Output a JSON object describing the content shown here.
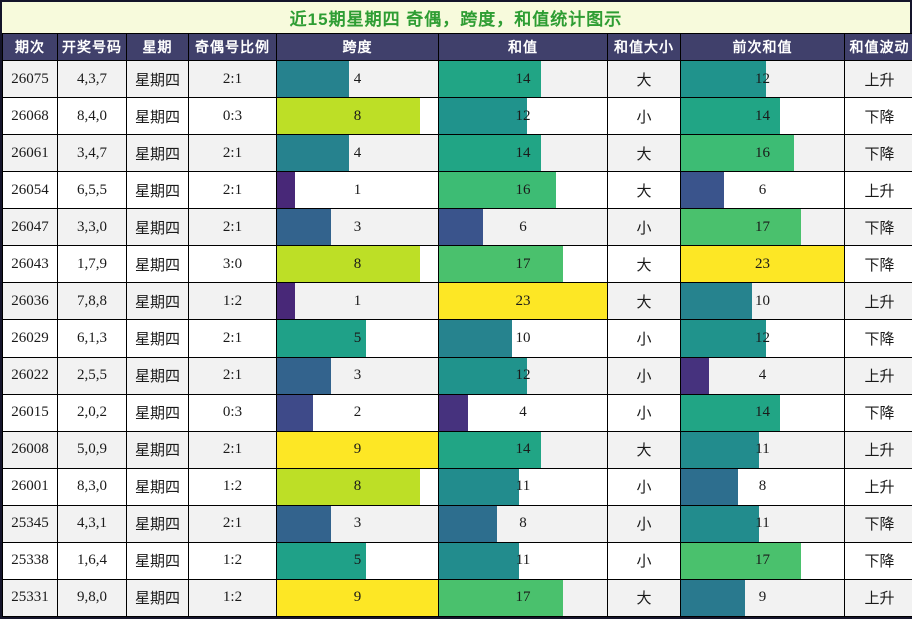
{
  "title": "近15期星期四 奇偶，跨度，和值统计图示",
  "colors": {
    "title_bg": "#f7fadc",
    "title_text": "#2e9d33",
    "header_bg": "#40406b",
    "header_text": "#ffffff",
    "row_odd_bg": "#f2f2f2",
    "row_even_bg": "#ffffff",
    "grid_border": "#000000",
    "bar_label_text": "#1a1a1a",
    "span_bar": {
      "1": "#482878",
      "2": "#3e4a89",
      "3": "#33638d",
      "4": "#26828e",
      "5": "#1fa188",
      "8": "#bddf26",
      "9": "#fde725"
    },
    "sum_bar": {
      "4": "#46327e",
      "6": "#3a548c",
      "8": "#2d6e8e",
      "9": "#29798e",
      "10": "#26838e",
      "11": "#228c8d",
      "12": "#20938c",
      "14": "#21a585",
      "16": "#3dbc74",
      "17": "#4ac16d",
      "23": "#fde725"
    }
  },
  "table": {
    "columns": [
      "期次",
      "开奖号码",
      "星期",
      "奇偶号比例",
      "跨度",
      "和值",
      "和值大小",
      "前次和值",
      "和值波动"
    ],
    "scales": {
      "span_max": 9,
      "sum_max": 23
    },
    "rows": [
      {
        "period": "26075",
        "numbers": "4,3,7",
        "weekday": "星期四",
        "odd_even_ratio": "2:1",
        "span": 4,
        "sum": 14,
        "sum_size": "大",
        "prev_sum": 12,
        "trend": "上升"
      },
      {
        "period": "26068",
        "numbers": "8,4,0",
        "weekday": "星期四",
        "odd_even_ratio": "0:3",
        "span": 8,
        "sum": 12,
        "sum_size": "小",
        "prev_sum": 14,
        "trend": "下降"
      },
      {
        "period": "26061",
        "numbers": "3,4,7",
        "weekday": "星期四",
        "odd_even_ratio": "2:1",
        "span": 4,
        "sum": 14,
        "sum_size": "大",
        "prev_sum": 16,
        "trend": "下降"
      },
      {
        "period": "26054",
        "numbers": "6,5,5",
        "weekday": "星期四",
        "odd_even_ratio": "2:1",
        "span": 1,
        "sum": 16,
        "sum_size": "大",
        "prev_sum": 6,
        "trend": "上升"
      },
      {
        "period": "26047",
        "numbers": "3,3,0",
        "weekday": "星期四",
        "odd_even_ratio": "2:1",
        "span": 3,
        "sum": 6,
        "sum_size": "小",
        "prev_sum": 17,
        "trend": "下降"
      },
      {
        "period": "26043",
        "numbers": "1,7,9",
        "weekday": "星期四",
        "odd_even_ratio": "3:0",
        "span": 8,
        "sum": 17,
        "sum_size": "大",
        "prev_sum": 23,
        "trend": "下降"
      },
      {
        "period": "26036",
        "numbers": "7,8,8",
        "weekday": "星期四",
        "odd_even_ratio": "1:2",
        "span": 1,
        "sum": 23,
        "sum_size": "大",
        "prev_sum": 10,
        "trend": "上升"
      },
      {
        "period": "26029",
        "numbers": "6,1,3",
        "weekday": "星期四",
        "odd_even_ratio": "2:1",
        "span": 5,
        "sum": 10,
        "sum_size": "小",
        "prev_sum": 12,
        "trend": "下降"
      },
      {
        "period": "26022",
        "numbers": "2,5,5",
        "weekday": "星期四",
        "odd_even_ratio": "2:1",
        "span": 3,
        "sum": 12,
        "sum_size": "小",
        "prev_sum": 4,
        "trend": "上升"
      },
      {
        "period": "26015",
        "numbers": "2,0,2",
        "weekday": "星期四",
        "odd_even_ratio": "0:3",
        "span": 2,
        "sum": 4,
        "sum_size": "小",
        "prev_sum": 14,
        "trend": "下降"
      },
      {
        "period": "26008",
        "numbers": "5,0,9",
        "weekday": "星期四",
        "odd_even_ratio": "2:1",
        "span": 9,
        "sum": 14,
        "sum_size": "大",
        "prev_sum": 11,
        "trend": "上升"
      },
      {
        "period": "26001",
        "numbers": "8,3,0",
        "weekday": "星期四",
        "odd_even_ratio": "1:2",
        "span": 8,
        "sum": 11,
        "sum_size": "小",
        "prev_sum": 8,
        "trend": "上升"
      },
      {
        "period": "25345",
        "numbers": "4,3,1",
        "weekday": "星期四",
        "odd_even_ratio": "2:1",
        "span": 3,
        "sum": 8,
        "sum_size": "小",
        "prev_sum": 11,
        "trend": "下降"
      },
      {
        "period": "25338",
        "numbers": "1,6,4",
        "weekday": "星期四",
        "odd_even_ratio": "1:2",
        "span": 5,
        "sum": 11,
        "sum_size": "小",
        "prev_sum": 17,
        "trend": "下降"
      },
      {
        "period": "25331",
        "numbers": "9,8,0",
        "weekday": "星期四",
        "odd_even_ratio": "1:2",
        "span": 9,
        "sum": 17,
        "sum_size": "大",
        "prev_sum": 9,
        "trend": "上升"
      }
    ]
  },
  "chart_data": {
    "type": "table",
    "title": "近15期星期四 奇偶，跨度，和值统计图示",
    "columns": [
      "期次",
      "开奖号码",
      "星期",
      "奇偶号比例",
      "跨度",
      "和值",
      "和值大小",
      "前次和值",
      "和值波动"
    ],
    "categories": [
      "26075",
      "26068",
      "26061",
      "26054",
      "26047",
      "26043",
      "26036",
      "26029",
      "26022",
      "26015",
      "26008",
      "26001",
      "25345",
      "25338",
      "25331"
    ],
    "series": [
      {
        "name": "跨度",
        "type": "bar",
        "axis_range": [
          0,
          9
        ],
        "values": [
          4,
          8,
          4,
          1,
          3,
          8,
          1,
          5,
          3,
          2,
          9,
          8,
          3,
          5,
          9
        ]
      },
      {
        "name": "和值",
        "type": "bar",
        "axis_range": [
          0,
          23
        ],
        "values": [
          14,
          12,
          14,
          16,
          6,
          17,
          23,
          10,
          12,
          4,
          14,
          11,
          8,
          11,
          17
        ]
      },
      {
        "name": "前次和值",
        "type": "bar",
        "axis_range": [
          0,
          23
        ],
        "values": [
          12,
          14,
          16,
          6,
          17,
          23,
          10,
          12,
          4,
          14,
          11,
          8,
          11,
          17,
          9
        ]
      }
    ],
    "text_columns": {
      "开奖号码": [
        "4,3,7",
        "8,4,0",
        "3,4,7",
        "6,5,5",
        "3,3,0",
        "1,7,9",
        "7,8,8",
        "6,1,3",
        "2,5,5",
        "2,0,2",
        "5,0,9",
        "8,3,0",
        "4,3,1",
        "1,6,4",
        "9,8,0"
      ],
      "星期": [
        "星期四",
        "星期四",
        "星期四",
        "星期四",
        "星期四",
        "星期四",
        "星期四",
        "星期四",
        "星期四",
        "星期四",
        "星期四",
        "星期四",
        "星期四",
        "星期四",
        "星期四"
      ],
      "奇偶号比例": [
        "2:1",
        "0:3",
        "2:1",
        "2:1",
        "2:1",
        "3:0",
        "1:2",
        "2:1",
        "2:1",
        "0:3",
        "2:1",
        "1:2",
        "2:1",
        "1:2",
        "1:2"
      ],
      "和值大小": [
        "大",
        "小",
        "大",
        "大",
        "小",
        "大",
        "大",
        "小",
        "小",
        "小",
        "大",
        "小",
        "小",
        "小",
        "大"
      ],
      "和值波动": [
        "上升",
        "下降",
        "下降",
        "上升",
        "下降",
        "下降",
        "上升",
        "下降",
        "上升",
        "下降",
        "上升",
        "上升",
        "下降",
        "下降",
        "上升"
      ]
    },
    "colormap": "viridis",
    "legend": "none",
    "grid": "cell-borders"
  }
}
